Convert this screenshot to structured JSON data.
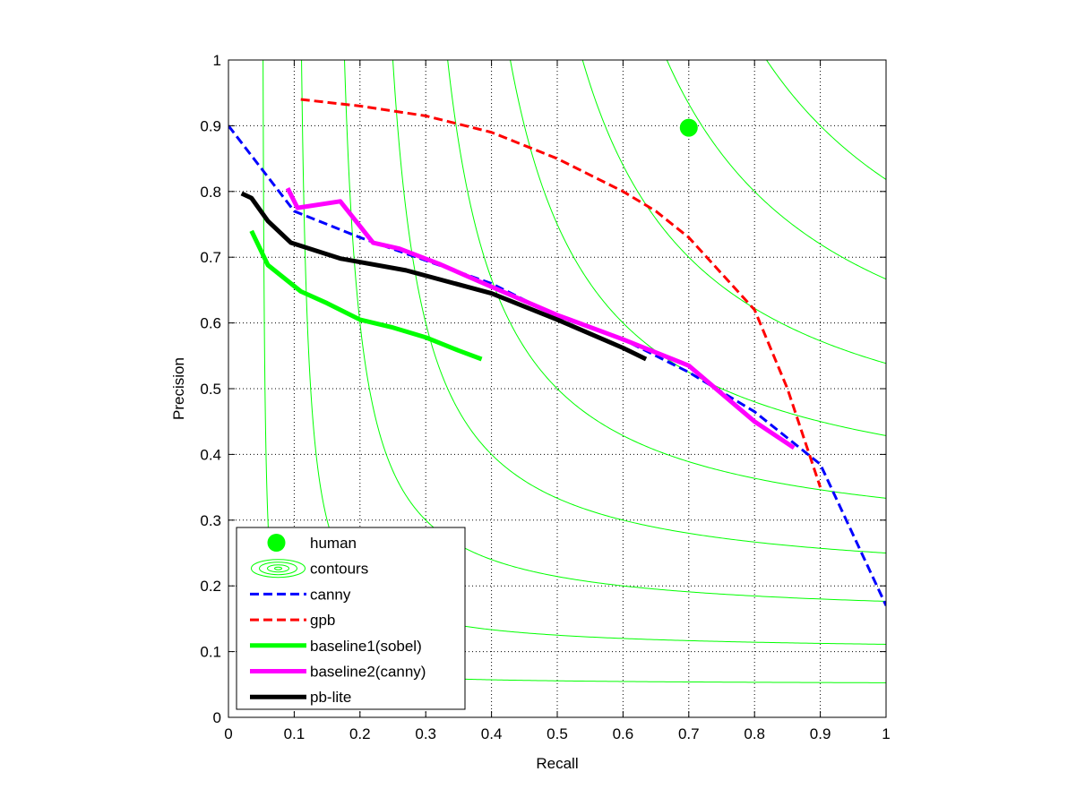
{
  "chart_data": {
    "type": "line",
    "xlabel": "Recall",
    "ylabel": "Precision",
    "xlim": [
      0,
      1
    ],
    "ylim": [
      0,
      1
    ],
    "grid": true,
    "x_ticks": [
      "0",
      "0.1",
      "0.2",
      "0.3",
      "0.4",
      "0.5",
      "0.6",
      "0.7",
      "0.8",
      "0.9",
      "1"
    ],
    "y_ticks": [
      "0",
      "0.1",
      "0.2",
      "0.3",
      "0.4",
      "0.5",
      "0.6",
      "0.7",
      "0.8",
      "0.9",
      "1"
    ],
    "legend_position": "bottom-left",
    "human": {
      "name": "human",
      "color": "#00ff00",
      "x": 0.7,
      "y": 0.897
    },
    "contours": {
      "name": "contours",
      "color": "#00ff00",
      "f_levels": [
        0.1,
        0.2,
        0.3,
        0.4,
        0.5,
        0.6,
        0.7,
        0.8,
        0.9
      ]
    },
    "series": [
      {
        "name": "canny",
        "color": "#0000ff",
        "style": "dashed",
        "points": [
          [
            0.0,
            0.9
          ],
          [
            0.1,
            0.77
          ],
          [
            0.2,
            0.73
          ],
          [
            0.4,
            0.66
          ],
          [
            0.5,
            0.61
          ],
          [
            0.6,
            0.575
          ],
          [
            0.7,
            0.525
          ],
          [
            0.8,
            0.465
          ],
          [
            0.9,
            0.385
          ],
          [
            1.0,
            0.17
          ]
        ]
      },
      {
        "name": "gpb",
        "color": "#ff0000",
        "style": "dashed",
        "points": [
          [
            0.11,
            0.94
          ],
          [
            0.2,
            0.93
          ],
          [
            0.3,
            0.915
          ],
          [
            0.4,
            0.89
          ],
          [
            0.5,
            0.85
          ],
          [
            0.6,
            0.8
          ],
          [
            0.65,
            0.77
          ],
          [
            0.7,
            0.73
          ],
          [
            0.8,
            0.62
          ],
          [
            0.85,
            0.5
          ],
          [
            0.9,
            0.35
          ]
        ]
      },
      {
        "name": "baseline1(sobel)",
        "color": "#00ff00",
        "style": "solid",
        "points": [
          [
            0.035,
            0.74
          ],
          [
            0.06,
            0.688
          ],
          [
            0.11,
            0.648
          ],
          [
            0.15,
            0.63
          ],
          [
            0.2,
            0.605
          ],
          [
            0.25,
            0.593
          ],
          [
            0.3,
            0.578
          ],
          [
            0.35,
            0.558
          ],
          [
            0.385,
            0.545
          ]
        ]
      },
      {
        "name": "baseline2(canny)",
        "color": "#ff00ff",
        "style": "solid",
        "points": [
          [
            0.09,
            0.805
          ],
          [
            0.105,
            0.775
          ],
          [
            0.17,
            0.785
          ],
          [
            0.22,
            0.722
          ],
          [
            0.26,
            0.713
          ],
          [
            0.32,
            0.69
          ],
          [
            0.4,
            0.655
          ],
          [
            0.5,
            0.612
          ],
          [
            0.6,
            0.575
          ],
          [
            0.7,
            0.535
          ],
          [
            0.8,
            0.45
          ],
          [
            0.86,
            0.41
          ]
        ]
      },
      {
        "name": "pb-lite",
        "color": "#000000",
        "style": "solid",
        "points": [
          [
            0.02,
            0.797
          ],
          [
            0.035,
            0.79
          ],
          [
            0.06,
            0.755
          ],
          [
            0.095,
            0.722
          ],
          [
            0.17,
            0.698
          ],
          [
            0.27,
            0.68
          ],
          [
            0.4,
            0.645
          ],
          [
            0.5,
            0.605
          ],
          [
            0.6,
            0.562
          ],
          [
            0.635,
            0.545
          ]
        ]
      }
    ]
  }
}
